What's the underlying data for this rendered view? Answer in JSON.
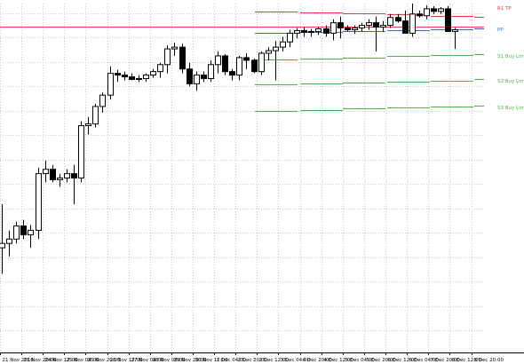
{
  "chart_data": {
    "type": "candlestick",
    "title": "",
    "xlabel": "",
    "ylabel": "",
    "ylim": [
      0,
      400
    ],
    "grid": true,
    "x_tick_labels": [
      "21 Nov 2016",
      "21 Nov 20:00",
      "24 Nov 12:00",
      "25 Nov 04:00",
      "25 Nov 20:00",
      "26 Nov 12:00",
      "27 Nov 04:00",
      "28 Nov 08:00",
      "29 Nov 20:00",
      "30 Nov 12:00",
      "1 Dec 04:00",
      "2 Dec 20:00",
      "2 Dec 12:00",
      "3 Dec 04:00",
      "4 Dec 20:00",
      "4 Dec 12:00",
      "5 Dec 04:00",
      "5 Dec 20:00",
      "6 Dec 12:00",
      "6 Dec 04:00",
      "7 Dec 20:00",
      "8 Dec 12:00",
      "8 Dec 20:00"
    ],
    "candles": [
      {
        "o": 120,
        "h": 170,
        "l": 90,
        "c": 125
      },
      {
        "o": 125,
        "h": 140,
        "l": 110,
        "c": 130
      },
      {
        "o": 130,
        "h": 150,
        "l": 125,
        "c": 145
      },
      {
        "o": 145,
        "h": 152,
        "l": 130,
        "c": 135
      },
      {
        "o": 135,
        "h": 146,
        "l": 120,
        "c": 140
      },
      {
        "o": 140,
        "h": 212,
        "l": 130,
        "c": 205
      },
      {
        "o": 205,
        "h": 220,
        "l": 195,
        "c": 210
      },
      {
        "o": 210,
        "h": 215,
        "l": 195,
        "c": 198
      },
      {
        "o": 198,
        "h": 205,
        "l": 190,
        "c": 200
      },
      {
        "o": 200,
        "h": 210,
        "l": 195,
        "c": 205
      },
      {
        "o": 205,
        "h": 215,
        "l": 170,
        "c": 200
      },
      {
        "o": 200,
        "h": 265,
        "l": 195,
        "c": 260
      },
      {
        "o": 260,
        "h": 270,
        "l": 250,
        "c": 262
      },
      {
        "o": 262,
        "h": 285,
        "l": 258,
        "c": 282
      },
      {
        "o": 282,
        "h": 298,
        "l": 275,
        "c": 295
      },
      {
        "o": 295,
        "h": 328,
        "l": 290,
        "c": 320
      },
      {
        "o": 320,
        "h": 324,
        "l": 310,
        "c": 318
      },
      {
        "o": 318,
        "h": 322,
        "l": 312,
        "c": 316
      },
      {
        "o": 316,
        "h": 320,
        "l": 312,
        "c": 313
      },
      {
        "o": 313,
        "h": 318,
        "l": 310,
        "c": 314
      },
      {
        "o": 314,
        "h": 320,
        "l": 310,
        "c": 318
      },
      {
        "o": 318,
        "h": 325,
        "l": 315,
        "c": 322
      },
      {
        "o": 322,
        "h": 332,
        "l": 315,
        "c": 330
      },
      {
        "o": 330,
        "h": 352,
        "l": 320,
        "c": 348
      },
      {
        "o": 348,
        "h": 355,
        "l": 340,
        "c": 350
      },
      {
        "o": 350,
        "h": 354,
        "l": 320,
        "c": 325
      },
      {
        "o": 325,
        "h": 332,
        "l": 305,
        "c": 308
      },
      {
        "o": 308,
        "h": 322,
        "l": 300,
        "c": 318
      },
      {
        "o": 318,
        "h": 322,
        "l": 310,
        "c": 314
      },
      {
        "o": 314,
        "h": 335,
        "l": 310,
        "c": 330
      },
      {
        "o": 330,
        "h": 345,
        "l": 320,
        "c": 340
      },
      {
        "o": 340,
        "h": 342,
        "l": 318,
        "c": 322
      },
      {
        "o": 322,
        "h": 325,
        "l": 312,
        "c": 318
      },
      {
        "o": 318,
        "h": 340,
        "l": 312,
        "c": 338
      },
      {
        "o": 338,
        "h": 343,
        "l": 325,
        "c": 335
      },
      {
        "o": 335,
        "h": 337,
        "l": 320,
        "c": 322
      },
      {
        "o": 322,
        "h": 345,
        "l": 318,
        "c": 343
      },
      {
        "o": 343,
        "h": 350,
        "l": 335,
        "c": 346
      },
      {
        "o": 346,
        "h": 357,
        "l": 312,
        "c": 350
      },
      {
        "o": 350,
        "h": 362,
        "l": 345,
        "c": 356
      },
      {
        "o": 356,
        "h": 370,
        "l": 350,
        "c": 366
      },
      {
        "o": 366,
        "h": 372,
        "l": 360,
        "c": 369
      },
      {
        "o": 369,
        "h": 373,
        "l": 362,
        "c": 367
      },
      {
        "o": 367,
        "h": 371,
        "l": 362,
        "c": 368
      },
      {
        "o": 368,
        "h": 373,
        "l": 364,
        "c": 371
      },
      {
        "o": 371,
        "h": 375,
        "l": 362,
        "c": 366
      },
      {
        "o": 366,
        "h": 382,
        "l": 358,
        "c": 378
      },
      {
        "o": 378,
        "h": 385,
        "l": 360,
        "c": 372
      },
      {
        "o": 372,
        "h": 375,
        "l": 368,
        "c": 370
      },
      {
        "o": 370,
        "h": 375,
        "l": 365,
        "c": 372
      },
      {
        "o": 372,
        "h": 378,
        "l": 368,
        "c": 375
      },
      {
        "o": 375,
        "h": 382,
        "l": 370,
        "c": 378
      },
      {
        "o": 378,
        "h": 385,
        "l": 345,
        "c": 373
      },
      {
        "o": 373,
        "h": 380,
        "l": 368,
        "c": 375
      },
      {
        "o": 375,
        "h": 388,
        "l": 372,
        "c": 384
      },
      {
        "o": 384,
        "h": 388,
        "l": 378,
        "c": 380
      },
      {
        "o": 380,
        "h": 392,
        "l": 370,
        "c": 366
      },
      {
        "o": 366,
        "h": 400,
        "l": 362,
        "c": 388
      },
      {
        "o": 388,
        "h": 392,
        "l": 384,
        "c": 386
      },
      {
        "o": 386,
        "h": 398,
        "l": 382,
        "c": 394
      },
      {
        "o": 394,
        "h": 397,
        "l": 388,
        "c": 391
      },
      {
        "o": 391,
        "h": 396,
        "l": 388,
        "c": 394
      },
      {
        "o": 394,
        "h": 397,
        "l": 372,
        "c": 368
      },
      {
        "o": 368,
        "h": 372,
        "l": 348,
        "c": 370
      }
    ],
    "levels": [
      {
        "name": "R1 TP",
        "value": 391,
        "color": "#e03c3c",
        "show_label": true
      },
      {
        "name": "",
        "value": 374,
        "color": "#e03c3c",
        "show_label": false
      },
      {
        "name": "PP",
        "value": 366,
        "color": "#3c64c8",
        "show_label": true
      },
      {
        "name": "S1 Buy Limit",
        "value": 336,
        "color": "#46b446",
        "show_label": true
      },
      {
        "name": "S2 Buy Limit",
        "value": 307,
        "color": "#46b446",
        "show_label": true
      },
      {
        "name": "S3 Buy Limit",
        "value": 277,
        "color": "#46b446",
        "show_label": true
      }
    ],
    "colors": {
      "up": "#ffffff",
      "down": "#000000",
      "wick": "#000000",
      "grid": "#c8c8c8"
    }
  }
}
